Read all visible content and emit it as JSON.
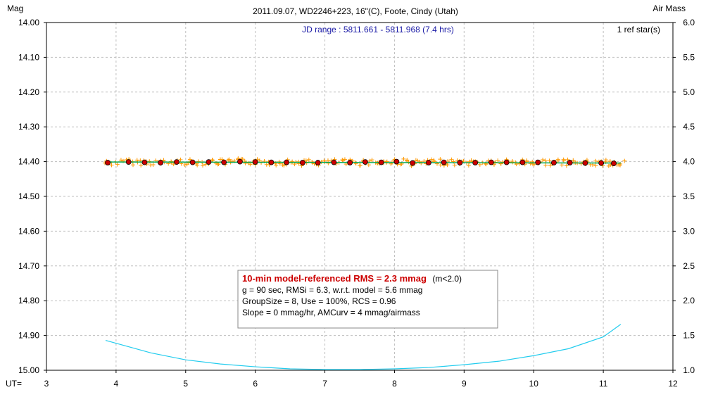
{
  "chart_data": {
    "type": "scatter",
    "title": "2011.09.07, WD2246+223, 16\"(C), Foote, Cindy (Utah)",
    "ylabel_left": "Mag",
    "ylabel_right": "Air Mass",
    "xlabel": "UT=",
    "jd_range": "JD range : 5811.661 - 5811.968 (7.4 hrs)",
    "ref_stars": "1 ref star(s)",
    "xlim": [
      3,
      12
    ],
    "ylim_left": [
      14.0,
      15.0
    ],
    "ylim_right": [
      1.0,
      6.0
    ],
    "x_ticks": [
      "3",
      "4",
      "5",
      "6",
      "7",
      "8",
      "9",
      "10",
      "11",
      "12"
    ],
    "y_left_ticks": [
      "14.00",
      "14.10",
      "14.20",
      "14.30",
      "14.40",
      "14.50",
      "14.60",
      "14.70",
      "14.80",
      "14.90",
      "15.00"
    ],
    "y_right_ticks": [
      "6.0",
      "5.5",
      "5.0",
      "4.5",
      "4.0",
      "3.5",
      "3.0",
      "2.5",
      "2.0",
      "1.5",
      "1.0"
    ],
    "grid": true,
    "colors": {
      "raw_points": "#ff9900",
      "group_means": "#cc0000",
      "model_line": "#00aa55",
      "airmass_curve": "#22ccee",
      "subtitle": "#1a1aa6"
    },
    "series": [
      {
        "kind": "group-means",
        "x": [
          3.88,
          4.18,
          4.41,
          4.64,
          4.87,
          5.1,
          5.33,
          5.55,
          5.78,
          6.0,
          6.23,
          6.45,
          6.68,
          6.9,
          7.13,
          7.36,
          7.58,
          7.81,
          8.03,
          8.26,
          8.49,
          8.71,
          8.94,
          9.16,
          9.39,
          9.61,
          9.84,
          10.06,
          10.29,
          10.52,
          10.74,
          10.97,
          11.15
        ],
        "y": [
          14.403,
          14.401,
          14.402,
          14.403,
          14.401,
          14.402,
          14.401,
          14.402,
          14.4,
          14.401,
          14.402,
          14.402,
          14.403,
          14.403,
          14.402,
          14.403,
          14.401,
          14.402,
          14.4,
          14.404,
          14.403,
          14.402,
          14.403,
          14.403,
          14.402,
          14.402,
          14.402,
          14.402,
          14.403,
          14.403,
          14.404,
          14.404,
          14.405
        ]
      },
      {
        "kind": "model",
        "x": [
          3.85,
          11.25
        ],
        "y": [
          14.401,
          14.404
        ]
      },
      {
        "kind": "air-mass",
        "x": [
          3.85,
          4.5,
          5.0,
          5.5,
          6.0,
          6.5,
          7.0,
          7.5,
          8.0,
          8.5,
          9.0,
          9.5,
          10.0,
          10.5,
          11.0,
          11.25
        ],
        "y": [
          1.43,
          1.25,
          1.15,
          1.09,
          1.05,
          1.02,
          1.01,
          1.01,
          1.02,
          1.04,
          1.08,
          1.13,
          1.21,
          1.31,
          1.48,
          1.66
        ]
      }
    ]
  },
  "info_box": {
    "title": "10-min model-referenced RMS = 2.3 mmag",
    "title_suffix": "(m<2.0)",
    "line1": "g = 90 sec, RMSi = 6.3, w.r.t. model = 5.6 mmag",
    "line2": "GroupSize = 8, Use = 100%, RCS = 0.96",
    "line3": "Slope = 0 mmag/hr, AMCurv = 4 mmag/airmass"
  }
}
